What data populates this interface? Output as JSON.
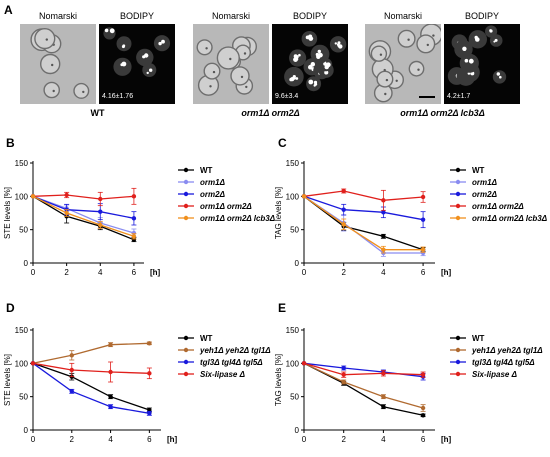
{
  "panel_a": {
    "letter": "A",
    "groups": [
      {
        "nomarski_label": "Nomarski",
        "bodipy_label": "BODIPY",
        "strain": "WT",
        "value": "4.16±1.76",
        "italic": false
      },
      {
        "nomarski_label": "Nomarski",
        "bodipy_label": "BODIPY",
        "strain": "orm1Δ orm2Δ",
        "value": "9.6±3.4",
        "italic": true
      },
      {
        "nomarski_label": "Nomarski",
        "bodipy_label": "BODIPY",
        "strain": "orm1Δ orm2Δ lcb3Δ",
        "value": "4.2±1.7",
        "italic": true
      }
    ]
  },
  "chart_data": [
    {
      "id": "B",
      "letter": "B",
      "type": "line",
      "title": "",
      "xlabel": "[h]",
      "ylabel": "STE levels [%]",
      "x": [
        0,
        2,
        4,
        6
      ],
      "xticks": [
        0,
        2,
        4,
        6
      ],
      "yticks": [
        0,
        50,
        100,
        150
      ],
      "xlim": [
        0,
        6.6
      ],
      "ylim": [
        0,
        150
      ],
      "legend": "right",
      "series": [
        {
          "name": "WT",
          "color": "#000000",
          "values": [
            100,
            70,
            55,
            35
          ],
          "err": [
            0,
            10,
            5,
            3
          ]
        },
        {
          "name": "orm1Δ",
          "color": "#8a8cf0",
          "values": [
            100,
            82,
            60,
            45
          ],
          "err": [
            0,
            5,
            8,
            6
          ]
        },
        {
          "name": "orm2Δ",
          "color": "#1a1adc",
          "values": [
            100,
            80,
            77,
            67
          ],
          "err": [
            0,
            8,
            12,
            10
          ]
        },
        {
          "name": "orm1Δ orm2Δ",
          "color": "#e0201c",
          "values": [
            100,
            102,
            96,
            100
          ],
          "err": [
            0,
            4,
            10,
            12
          ]
        },
        {
          "name": "orm1Δ orm2Δ lcb3Δ",
          "color": "#f0901e",
          "values": [
            100,
            75,
            57,
            40
          ],
          "err": [
            0,
            5,
            5,
            4
          ]
        }
      ]
    },
    {
      "id": "C",
      "letter": "C",
      "type": "line",
      "title": "",
      "xlabel": "[h]",
      "ylabel": "TAG levels [%]",
      "x": [
        0,
        2,
        4,
        6
      ],
      "xticks": [
        0,
        2,
        4,
        6
      ],
      "yticks": [
        0,
        50,
        100,
        150
      ],
      "xlim": [
        0,
        6.6
      ],
      "ylim": [
        0,
        150
      ],
      "legend": "right",
      "series": [
        {
          "name": "WT",
          "color": "#000000",
          "values": [
            100,
            55,
            40,
            20
          ],
          "err": [
            0,
            6,
            3,
            3
          ]
        },
        {
          "name": "orm1Δ",
          "color": "#8a8cf0",
          "values": [
            100,
            60,
            15,
            15
          ],
          "err": [
            0,
            12,
            5,
            4
          ]
        },
        {
          "name": "orm2Δ",
          "color": "#1a1adc",
          "values": [
            100,
            80,
            76,
            65
          ],
          "err": [
            0,
            8,
            8,
            12
          ]
        },
        {
          "name": "orm1Δ orm2Δ",
          "color": "#e0201c",
          "values": [
            100,
            108,
            94,
            99
          ],
          "err": [
            0,
            3,
            15,
            8
          ]
        },
        {
          "name": "orm1Δ orm2Δ lcb3Δ",
          "color": "#f0901e",
          "values": [
            100,
            58,
            20,
            20
          ],
          "err": [
            0,
            8,
            5,
            4
          ]
        }
      ]
    },
    {
      "id": "D",
      "letter": "D",
      "type": "line",
      "title": "",
      "xlabel": "[h]",
      "ylabel": "STE levels [%]",
      "x": [
        0,
        2,
        4,
        6
      ],
      "xticks": [
        0,
        2,
        4,
        6
      ],
      "yticks": [
        0,
        50,
        100,
        150
      ],
      "xlim": [
        0,
        6.6
      ],
      "ylim": [
        0,
        150
      ],
      "legend": "right",
      "series": [
        {
          "name": "WT",
          "color": "#000000",
          "values": [
            100,
            80,
            50,
            30
          ],
          "err": [
            0,
            5,
            3,
            3
          ]
        },
        {
          "name": "yeh1Δ yeh2Δ tgl1Δ",
          "color": "#b06a30",
          "values": [
            100,
            112,
            128,
            130
          ],
          "err": [
            0,
            7,
            3,
            2
          ]
        },
        {
          "name": "tgl3Δ tgl4Δ tgl5Δ",
          "color": "#1a1adc",
          "values": [
            100,
            58,
            35,
            25
          ],
          "err": [
            0,
            3,
            3,
            3
          ]
        },
        {
          "name": "Six-lipase Δ",
          "color": "#e0201c",
          "values": [
            100,
            90,
            87,
            85
          ],
          "err": [
            0,
            10,
            15,
            8
          ]
        }
      ]
    },
    {
      "id": "E",
      "letter": "E",
      "type": "line",
      "title": "",
      "xlabel": "[h]",
      "ylabel": "TAG levels [%]",
      "x": [
        0,
        2,
        4,
        6
      ],
      "xticks": [
        0,
        2,
        4,
        6
      ],
      "yticks": [
        0,
        50,
        100,
        150
      ],
      "xlim": [
        0,
        6.6
      ],
      "ylim": [
        0,
        150
      ],
      "legend": "right",
      "series": [
        {
          "name": "WT",
          "color": "#000000",
          "values": [
            100,
            70,
            35,
            22
          ],
          "err": [
            0,
            3,
            3,
            2
          ]
        },
        {
          "name": "yeh1Δ yeh2Δ tgl1Δ",
          "color": "#b06a30",
          "values": [
            100,
            72,
            50,
            33
          ],
          "err": [
            0,
            3,
            3,
            5
          ]
        },
        {
          "name": "tgl3Δ tgl4Δ tgl5Δ",
          "color": "#1a1adc",
          "values": [
            100,
            93,
            87,
            80
          ],
          "err": [
            0,
            3,
            3,
            5
          ]
        },
        {
          "name": "Six-lipase Δ",
          "color": "#e0201c",
          "values": [
            100,
            83,
            85,
            83
          ],
          "err": [
            0,
            4,
            4,
            4
          ]
        }
      ]
    }
  ]
}
